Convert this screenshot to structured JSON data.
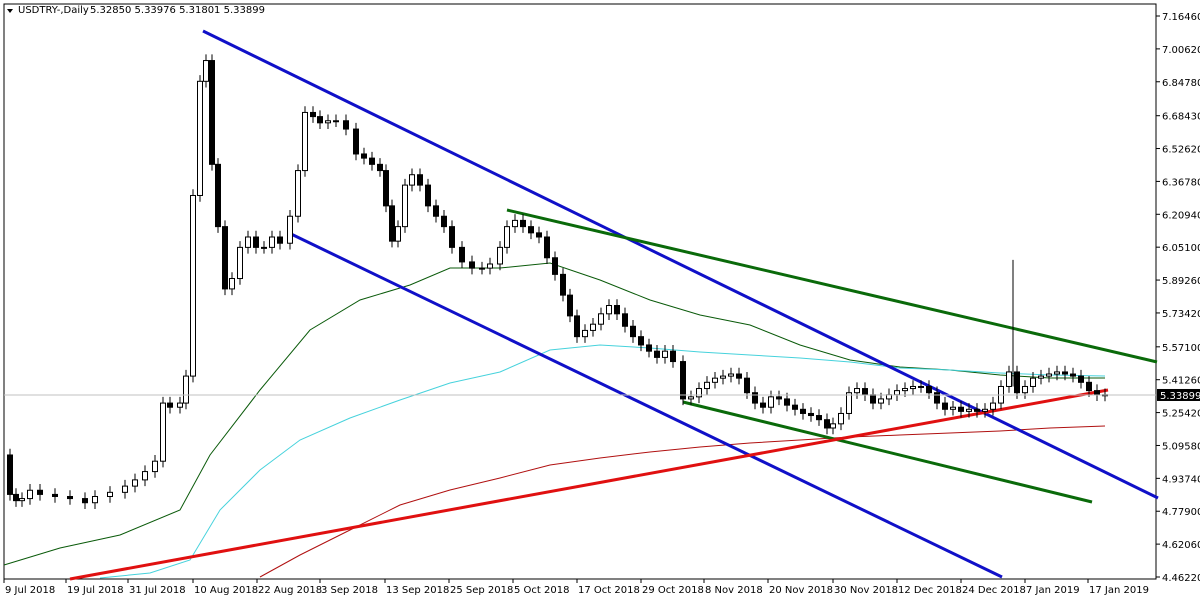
{
  "header": {
    "symbol": "USDTRY-,Daily",
    "ohlc": "5.32850 5.33976 5.31801 5.33899"
  },
  "chart_data": {
    "type": "candlestick",
    "symbol": "USDTRY-",
    "timeframe": "Daily",
    "last_open": 5.3285,
    "last_high": 5.33976,
    "last_low": 5.31801,
    "last_close": 5.33899,
    "current_price_label": "5.33899",
    "ylim": [
      4.4622,
      7.1646
    ],
    "yticks": [
      "7.16460",
      "7.00620",
      "6.84780",
      "6.68430",
      "6.52620",
      "6.36780",
      "6.20940",
      "6.05100",
      "5.89260",
      "5.73420",
      "5.57100",
      "5.41260",
      "5.25420",
      "5.09580",
      "4.93740",
      "4.77900",
      "4.62060",
      "4.46220"
    ],
    "xticks": [
      "9 Jul 2018",
      "19 Jul 2018",
      "31 Jul 2018",
      "10 Aug 2018",
      "22 Aug 2018",
      "3 Sep 2018",
      "13 Sep 2018",
      "25 Sep 2018",
      "5 Oct 2018",
      "17 Oct 2018",
      "29 Oct 2018",
      "8 Nov 2018",
      "20 Nov 2018",
      "30 Nov 2018",
      "12 Dec 2018",
      "24 Dec 2018",
      "7 Jan 2019",
      "17 Jan 2019"
    ],
    "colors": {
      "channel_blue": "#1010c8",
      "channel_green": "#0a6a0a",
      "trend_red": "#e01010",
      "ma_dark_green": "#0a5a0a",
      "ma_cyan": "#46d2dc",
      "ma_dark_red": "#b01010",
      "price_line": "#c0c0c0"
    }
  }
}
